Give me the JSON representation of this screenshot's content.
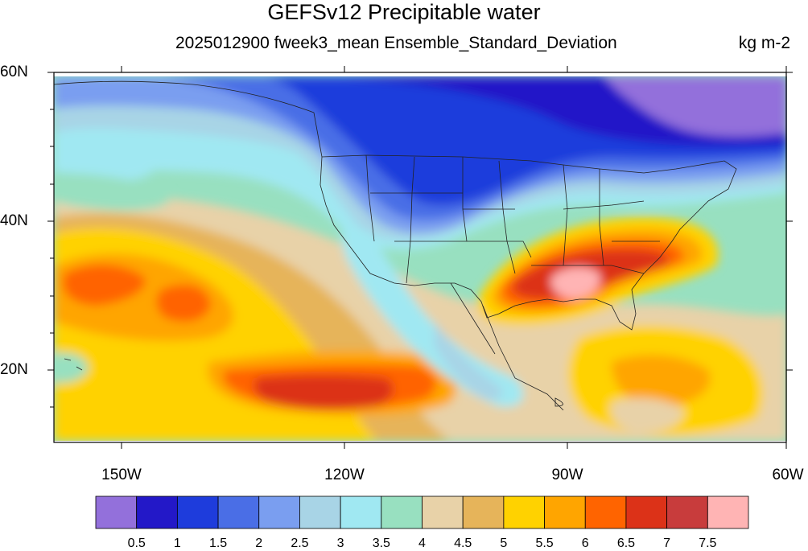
{
  "header": {
    "title": "GEFSv12 Precipitable water",
    "subtitle": "2025012900 fweek3_mean Ensemble_Standard_Deviation",
    "units": "kg m-2"
  },
  "map": {
    "lat_labels": [
      "60N",
      "40N",
      "20N"
    ],
    "lon_labels": [
      "150W",
      "120W",
      "90W",
      "60W"
    ]
  },
  "colorbar": {
    "colors": [
      "#9370db",
      "#2318c8",
      "#1e3cdc",
      "#4a6ee6",
      "#7a9ef0",
      "#a8d4e6",
      "#a0e8f2",
      "#98e0c0",
      "#e8d2a8",
      "#e6b45a",
      "#ffd200",
      "#ffa500",
      "#ff6400",
      "#dc3218",
      "#c83c3c",
      "#ffb4b4"
    ],
    "labels": [
      "0.5",
      "1",
      "1.5",
      "2",
      "2.5",
      "3",
      "3.5",
      "4",
      "4.5",
      "5",
      "5.5",
      "6",
      "6.5",
      "7",
      "7.5"
    ]
  }
}
